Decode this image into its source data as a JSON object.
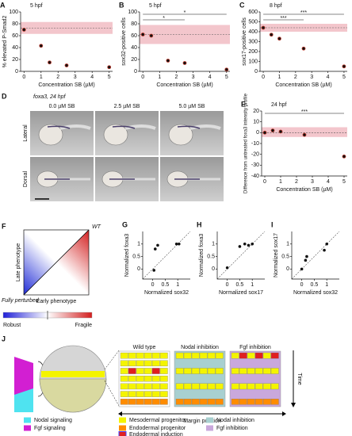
{
  "chart_data": [
    {
      "type": "scatter",
      "panel": "A",
      "title": "5 hpf",
      "x_label": "Concentration SB (µM)",
      "y_label": "% elevated P-Smad2",
      "x": [
        0,
        1,
        1.5,
        2.5,
        5
      ],
      "values": [
        70,
        43,
        15,
        10,
        7
      ],
      "color": "#111111",
      "ring_color": "#c0392b",
      "band_color": "#f3c6cc",
      "reference": {
        "value": 73,
        "low": 63,
        "high": 83
      },
      "xlim": [
        -0.2,
        5.2
      ],
      "xticks": [
        0,
        1,
        2,
        3,
        4,
        5
      ],
      "ylim": [
        0,
        100
      ],
      "yticks": [
        0,
        20,
        40,
        60,
        80,
        100
      ]
    },
    {
      "type": "scatter",
      "panel": "B",
      "title": "5 hpf",
      "x_label": "Concentration SB (µM)",
      "y_label": "sox32-positive cells",
      "x": [
        0,
        0.5,
        1.5,
        2.5,
        5
      ],
      "values": [
        62,
        60,
        18,
        14,
        3
      ],
      "color": "#111111",
      "ring_color": "#c0392b",
      "band_color": "#f3c6cc",
      "reference": {
        "value": 62,
        "low": 46,
        "high": 78
      },
      "annotations": [
        {
          "label": "*",
          "from": 0,
          "to": 5
        },
        {
          "label": "*",
          "from": 0,
          "to": 2.5
        }
      ],
      "xlim": [
        -0.2,
        5.2
      ],
      "xticks": [
        0,
        1,
        2,
        3,
        4,
        5
      ],
      "ylim": [
        0,
        100
      ],
      "yticks": [
        0,
        20,
        40,
        60,
        80,
        100
      ]
    },
    {
      "type": "scatter",
      "panel": "C",
      "title": "8 hpf",
      "x_label": "Concentration SB (µM)",
      "y_label": "sox17-positive cells",
      "x": [
        0,
        0.5,
        1,
        2.5,
        5
      ],
      "values": [
        440,
        370,
        330,
        230,
        50
      ],
      "color": "#111111",
      "ring_color": "#c0392b",
      "band_color": "#f3c6cc",
      "reference": {
        "value": 440,
        "low": 400,
        "high": 480
      },
      "annotations": [
        {
          "label": "***",
          "from": 0,
          "to": 5
        },
        {
          "label": "***",
          "from": 0,
          "to": 2.5
        }
      ],
      "xlim": [
        -0.2,
        5.2
      ],
      "xticks": [
        0,
        1,
        2,
        3,
        4,
        5
      ],
      "ylim": [
        0,
        600
      ],
      "yticks": [
        0,
        100,
        200,
        300,
        400,
        500,
        600
      ]
    },
    {
      "type": "scatter",
      "panel": "E",
      "title": "24 hpf",
      "x_label": "Concentration SB (µM)",
      "y_label": "Difference from untreated foxa3 intensity profile",
      "x": [
        0,
        0.5,
        1,
        2.5,
        5
      ],
      "values": [
        0,
        2,
        1,
        -2,
        -22
      ],
      "color": "#111111",
      "ring_color": "#c0392b",
      "band_color": "#f3c6cc",
      "reference": {
        "value": 0,
        "low": -4,
        "high": 5
      },
      "annotations": [
        {
          "label": "***",
          "from": 0,
          "to": 5
        }
      ],
      "xlim": [
        -0.2,
        5.2
      ],
      "xticks": [
        0,
        1,
        2,
        3,
        4,
        5
      ],
      "ylim": [
        -40,
        20
      ],
      "yticks": [
        -40,
        -30,
        -20,
        -10,
        0,
        10,
        20
      ]
    },
    {
      "type": "scatter",
      "panel": "G",
      "x_label": "Normalized sox32",
      "y_label": "Normalized foxa3",
      "x": [
        0.05,
        0.1,
        0.2,
        0.95,
        1.05
      ],
      "values": [
        -0.05,
        0.8,
        0.95,
        1,
        1
      ],
      "color": "#111111",
      "diagonal": true,
      "xlim": [
        -0.4,
        1.5
      ],
      "xticks": [
        0,
        0.5,
        1
      ],
      "ylim": [
        -0.4,
        1.5
      ],
      "yticks": [
        0,
        0.5,
        1
      ]
    },
    {
      "type": "scatter",
      "panel": "H",
      "x_label": "Normalized sox17",
      "y_label": "Normalized foxa3",
      "x": [
        0,
        0.5,
        0.7,
        0.85,
        1
      ],
      "values": [
        0.05,
        0.9,
        1,
        0.95,
        1
      ],
      "color": "#111111",
      "diagonal": true,
      "xlim": [
        -0.4,
        1.5
      ],
      "xticks": [
        0,
        0.5,
        1
      ],
      "ylim": [
        -0.4,
        1.5
      ],
      "yticks": [
        0,
        0.5,
        1
      ]
    },
    {
      "type": "scatter",
      "panel": "I",
      "x_label": "Normalized sox32",
      "y_label": "Normalized sox17",
      "x": [
        0,
        0.15,
        0.2,
        0.9,
        1
      ],
      "values": [
        0,
        0.35,
        0.5,
        0.75,
        1
      ],
      "color": "#111111",
      "diagonal": true,
      "xlim": [
        -0.4,
        1.5
      ],
      "xticks": [
        0,
        0.5,
        1
      ],
      "ylim": [
        -0.4,
        1.5
      ],
      "yticks": [
        0,
        0.5,
        1
      ]
    }
  ],
  "panel_d": {
    "letter": "D",
    "title": "foxa3, 24 hpf",
    "columns": [
      "0.0 µM SB",
      "2.5 µM SB",
      "5.0 µM SB"
    ],
    "rows": [
      "Lateral",
      "Dorsal"
    ]
  },
  "panel_f": {
    "letter": "F",
    "corner_label": "WT",
    "y_label": "Late phenotype",
    "x_label": "Early phenotype",
    "origin_label": "Fully perturbed",
    "scale_low": "Robust",
    "scale_high": "Fragile"
  },
  "panel_j": {
    "letter": "J",
    "columns": [
      "Wild type",
      "Nodal inhibition",
      "Fgf inhibition"
    ],
    "time_label": "Time",
    "x_label": "Margin position",
    "legend": [
      "Nodal signaling",
      "Fgf signaling",
      "Mesodermal progenitor",
      "Endodermal progenitor",
      "Endodermal induction",
      "Nodal inhibition",
      "Fgf inhibition"
    ]
  }
}
